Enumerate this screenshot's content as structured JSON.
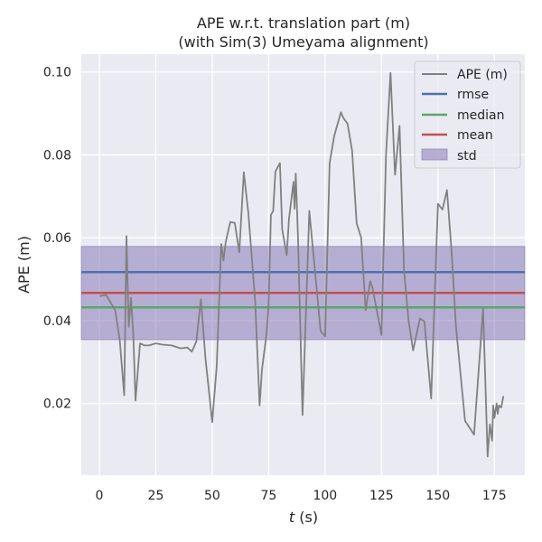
{
  "chart_data": {
    "type": "line",
    "title": "APE w.r.t. translation part (m)",
    "subtitle": "(with Sim(3) Umeyama alignment)",
    "xlabel_var": "t",
    "xlabel_unit": " (s)",
    "ylabel": "APE (m)",
    "xlim": [
      -8,
      188.5
    ],
    "ylim": [
      0.0027,
      0.1043
    ],
    "xticks": [
      0,
      25,
      50,
      75,
      100,
      125,
      150,
      175
    ],
    "yticks": [
      0.02,
      0.04,
      0.06,
      0.08,
      0.1
    ],
    "xtick_labels": [
      "0",
      "25",
      "50",
      "75",
      "100",
      "125",
      "150",
      "175"
    ],
    "ytick_labels": [
      "0.02",
      "0.04",
      "0.06",
      "0.08",
      "0.10"
    ],
    "grid": true,
    "legend_position": "top-right",
    "series": [
      {
        "name": "APE (m)",
        "color": "#808080",
        "x": [
          0,
          3,
          7,
          9,
          11,
          12,
          13,
          14,
          15,
          16,
          18,
          20,
          22,
          25,
          28,
          32,
          36,
          39,
          41,
          43,
          45,
          47,
          50,
          52,
          54,
          55,
          56,
          58,
          60,
          62,
          64,
          66,
          69,
          71,
          72,
          74,
          75,
          76,
          77,
          78,
          80,
          81,
          83,
          84,
          86,
          86.5,
          87,
          88,
          90,
          91,
          93,
          95,
          98,
          100,
          102,
          104,
          107,
          108,
          110,
          112,
          114,
          116,
          118,
          120,
          121,
          125,
          127,
          129,
          131,
          133,
          135,
          137,
          139,
          142,
          144,
          147,
          150,
          152,
          154,
          156,
          158,
          162,
          166,
          170,
          172,
          173,
          174,
          174.5,
          175,
          176,
          176.5,
          177,
          178,
          179
        ],
        "y": [
          0.0459,
          0.0462,
          0.0425,
          0.0355,
          0.022,
          0.0604,
          0.0385,
          0.0455,
          0.037,
          0.0207,
          0.0345,
          0.034,
          0.034,
          0.0345,
          0.0342,
          0.034,
          0.0333,
          0.0335,
          0.0325,
          0.035,
          0.0452,
          0.031,
          0.0155,
          0.029,
          0.0585,
          0.0545,
          0.059,
          0.0638,
          0.0636,
          0.0565,
          0.0758,
          0.066,
          0.045,
          0.0195,
          0.028,
          0.0365,
          0.044,
          0.0655,
          0.0665,
          0.076,
          0.078,
          0.062,
          0.0558,
          0.0645,
          0.0735,
          0.067,
          0.0755,
          0.06,
          0.0172,
          0.0335,
          0.0665,
          0.055,
          0.0375,
          0.0362,
          0.078,
          0.0845,
          0.0903,
          0.089,
          0.0875,
          0.081,
          0.0635,
          0.06,
          0.0425,
          0.0495,
          0.048,
          0.0365,
          0.08,
          0.0998,
          0.0752,
          0.087,
          0.052,
          0.04,
          0.0328,
          0.0405,
          0.0398,
          0.0212,
          0.0682,
          0.0668,
          0.0715,
          0.057,
          0.0385,
          0.0158,
          0.0125,
          0.043,
          0.0072,
          0.015,
          0.011,
          0.0195,
          0.0165,
          0.02,
          0.0175,
          0.0195,
          0.019,
          0.0218
        ]
      }
    ],
    "stats": [
      {
        "name": "rmse",
        "value": 0.0517,
        "color": "#4c72b0"
      },
      {
        "name": "median",
        "value": 0.0432,
        "color": "#55a868"
      },
      {
        "name": "mean",
        "value": 0.0467,
        "color": "#c44e52"
      }
    ],
    "std_band": {
      "name": "std",
      "low": 0.0354,
      "high": 0.0579,
      "color": "#8172b2"
    }
  }
}
